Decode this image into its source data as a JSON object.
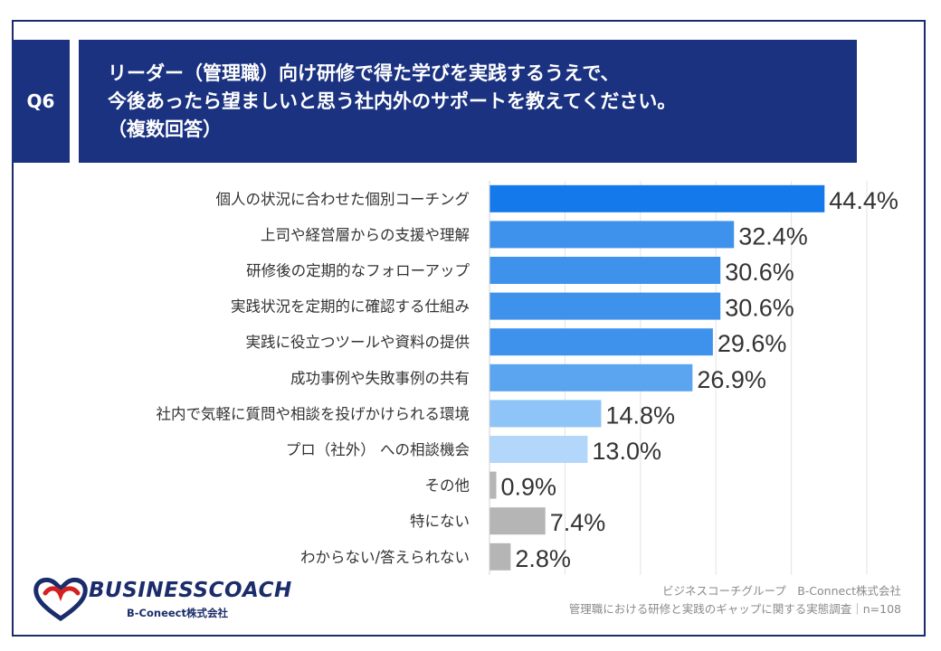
{
  "header": {
    "badge": "Q6",
    "title_lines": [
      "リーダー（管理職）向け研修で得た学びを実践するうえで、",
      "今後あったら望ましいと思う社内外のサポートを教えてください。",
      "（複数回答）"
    ]
  },
  "chart_data": {
    "type": "bar",
    "orientation": "horizontal",
    "categories": [
      "個人の状況に合わせた個別コーチング",
      "上司や経営層からの支援や理解",
      "研修後の定期的なフォローアップ",
      "実践状況を定期的に確認する仕組み",
      "実践に役立つツールや資料の提供",
      "成功事例や失敗事例の共有",
      "社内で気軽に質問や相談を投げかけられる環境",
      "プロ（社外） への相談機会",
      "その他",
      "特にない",
      "わからない/答えられない"
    ],
    "values": [
      44.4,
      32.4,
      30.6,
      30.6,
      29.6,
      26.9,
      14.8,
      13.0,
      0.9,
      7.4,
      2.8
    ],
    "value_labels": [
      "44.4%",
      "32.4%",
      "30.6%",
      "30.6%",
      "29.6%",
      "26.9%",
      "14.8%",
      "13.0%",
      "0.9%",
      "7.4%",
      "2.8%"
    ],
    "bar_colors": [
      "#1479ea",
      "#3e92ec",
      "#3e92ec",
      "#3e92ec",
      "#3e92ec",
      "#5aa4f0",
      "#8ec4f7",
      "#b2d7fa",
      "#b5b5b5",
      "#b5b5b5",
      "#b5b5b5"
    ],
    "xlim": [
      0,
      50
    ],
    "grid": true
  },
  "footer": {
    "line1": "ビジネスコーチグループ　B-Connect株式会社",
    "line2": "管理職における研修と実践のギャップに関する実態調査｜n=108"
  },
  "logo": {
    "name": "BUSINESSCOACH",
    "sub": "B-Coneect株式会社"
  }
}
